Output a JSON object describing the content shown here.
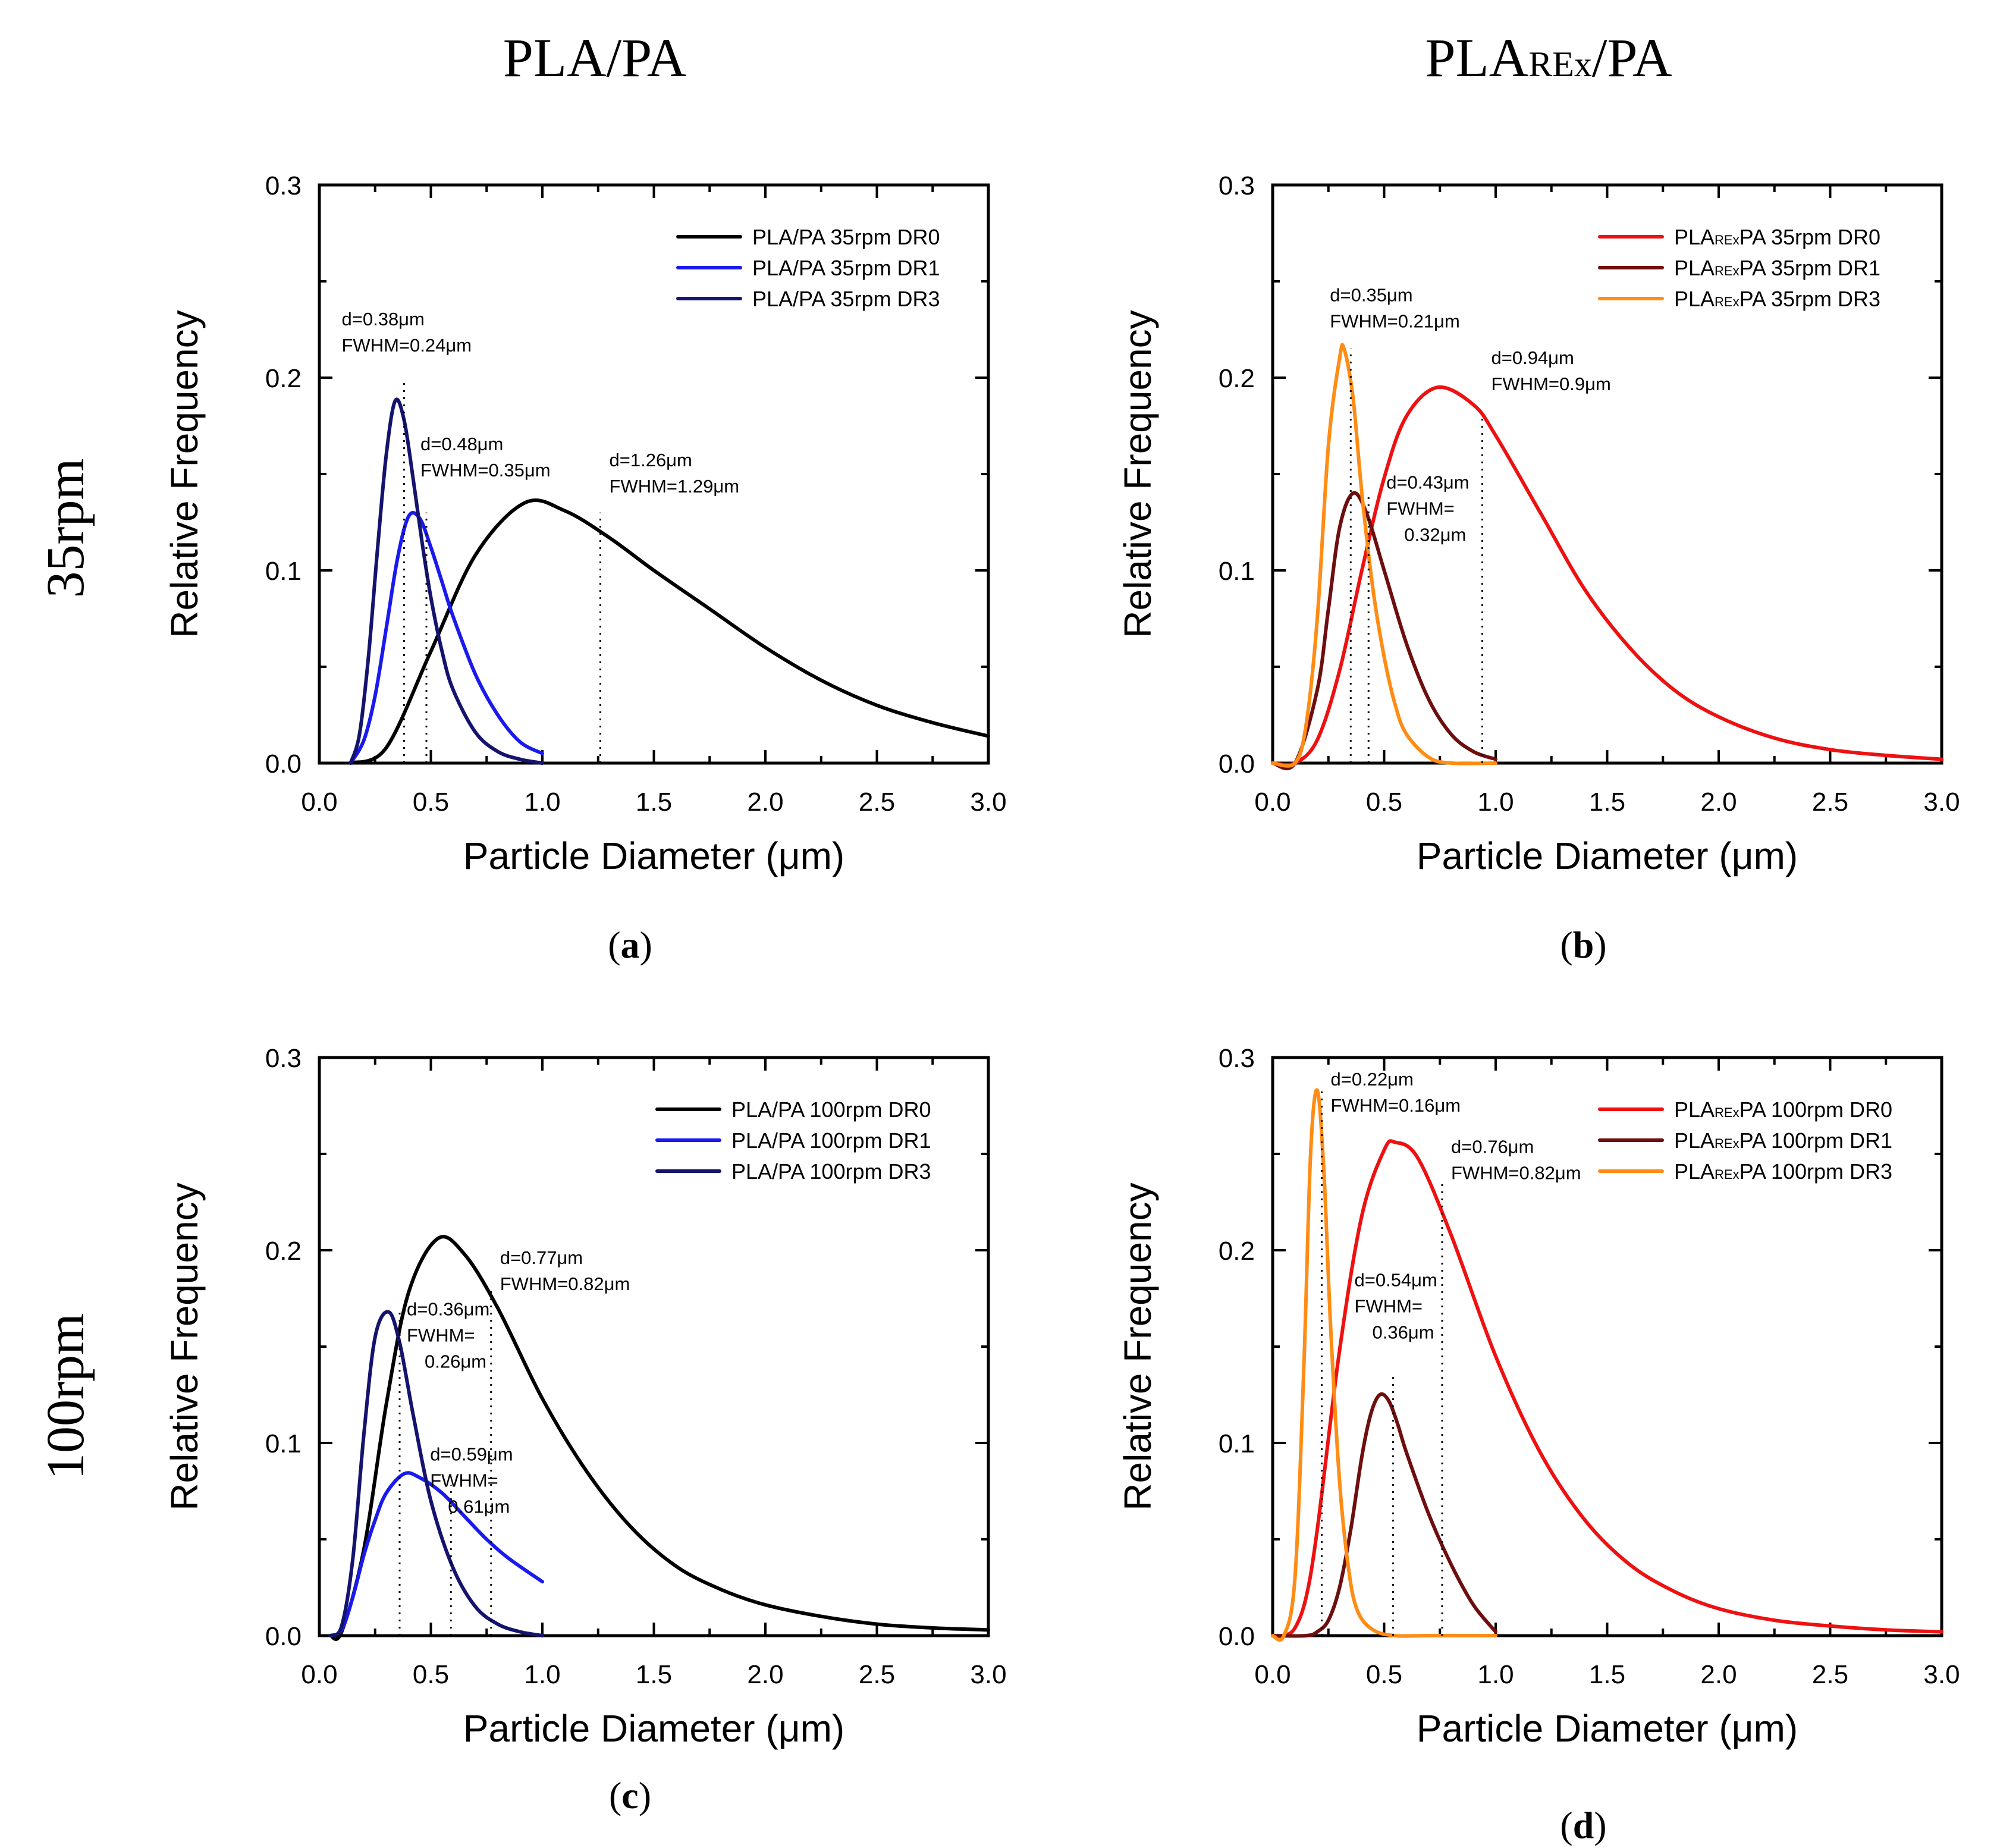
{
  "column_titles": [
    {
      "main": "PLA/PA",
      "sub": "",
      "rest": ""
    },
    {
      "main": "PLA",
      "sub": "REx",
      "rest": "/PA"
    }
  ],
  "row_labels": [
    "35rpm",
    "100rpm"
  ],
  "chart_data": [
    {
      "type": "line",
      "panel": "(a)",
      "panel_letter": "a",
      "xlabel": "Particle Diameter (μm)",
      "ylabel": "Relative Frequency",
      "xlim": [
        0.0,
        3.0
      ],
      "ylim": [
        0.0,
        0.3
      ],
      "xticks": [
        "0.0",
        "0.5",
        "1.0",
        "1.5",
        "2.0",
        "2.5",
        "3.0"
      ],
      "yticks": [
        "0.0",
        "0.1",
        "0.2",
        "0.3"
      ],
      "legend_position": "top-right",
      "series": [
        {
          "name": "PLA/PA 35rpm DR0",
          "label_main": "PLA/PA 35rpm DR0",
          "label_sub": "",
          "label_rest": "",
          "color": "#000000",
          "x": [
            0.14,
            0.3,
            0.5,
            0.7,
            0.92,
            1.1,
            1.3,
            1.5,
            1.75,
            2.0,
            2.25,
            2.5,
            2.75,
            3.0
          ],
          "y": [
            0.0,
            0.008,
            0.058,
            0.108,
            0.135,
            0.131,
            0.117,
            0.1,
            0.08,
            0.06,
            0.043,
            0.03,
            0.021,
            0.014
          ]
        },
        {
          "name": "PLA/PA 35rpm DR1",
          "label_main": "PLA/PA 35rpm DR1",
          "label_sub": "",
          "label_rest": "",
          "color": "#1a1aee",
          "x": [
            0.14,
            0.2,
            0.25,
            0.3,
            0.35,
            0.4,
            0.45,
            0.5,
            0.55,
            0.6,
            0.7,
            0.8,
            0.9,
            1.0
          ],
          "y": [
            0.0,
            0.012,
            0.035,
            0.07,
            0.106,
            0.128,
            0.127,
            0.112,
            0.094,
            0.076,
            0.046,
            0.025,
            0.011,
            0.005
          ]
        },
        {
          "name": "PLA/PA 35rpm DR3",
          "label_main": "PLA/PA 35rpm DR3",
          "label_sub": "",
          "label_rest": "",
          "color": "#14146e",
          "x": [
            0.14,
            0.18,
            0.22,
            0.26,
            0.3,
            0.34,
            0.38,
            0.42,
            0.46,
            0.5,
            0.55,
            0.6,
            0.7,
            0.8,
            0.9,
            1.0
          ],
          "y": [
            0.0,
            0.015,
            0.055,
            0.11,
            0.16,
            0.188,
            0.178,
            0.148,
            0.115,
            0.086,
            0.058,
            0.038,
            0.016,
            0.006,
            0.002,
            0.0
          ]
        }
      ],
      "annotations": [
        {
          "lines": [
            "d=0.38μm",
            "FWHM=0.24μm"
          ],
          "x": 0.38,
          "line_top": 0.2
        },
        {
          "lines": [
            "d=0.48μm",
            "FWHM=0.35μm"
          ],
          "x": 0.48,
          "line_top": 0.13
        },
        {
          "lines": [
            "d=1.26μm",
            "FWHM=1.29μm"
          ],
          "x": 1.26,
          "line_top": 0.13
        }
      ]
    },
    {
      "type": "line",
      "panel": "(b)",
      "panel_letter": "b",
      "xlabel": "Particle Diameter (μm)",
      "ylabel": "Relative Frequency",
      "xlim": [
        0.0,
        3.0
      ],
      "ylim": [
        0.0,
        0.3
      ],
      "xticks": [
        "0.0",
        "0.5",
        "1.0",
        "1.5",
        "2.0",
        "2.5",
        "3.0"
      ],
      "yticks": [
        "0.0",
        "0.1",
        "0.2",
        "0.3"
      ],
      "legend_position": "top-right",
      "series": [
        {
          "name": "PLAREx PA 35rpm DR0",
          "label_main": "PLA",
          "label_sub": "REx",
          "label_rest": "PA 35rpm DR0",
          "color": "#ee1111",
          "x": [
            0.0,
            0.1,
            0.2,
            0.3,
            0.4,
            0.5,
            0.6,
            0.74,
            0.9,
            1.0,
            1.2,
            1.4,
            1.6,
            1.8,
            2.0,
            2.25,
            2.5,
            2.75,
            3.0
          ],
          "y": [
            0.0,
            0.0,
            0.012,
            0.048,
            0.1,
            0.148,
            0.18,
            0.195,
            0.186,
            0.17,
            0.13,
            0.09,
            0.06,
            0.038,
            0.024,
            0.013,
            0.007,
            0.004,
            0.002
          ]
        },
        {
          "name": "PLAREx PA 35rpm DR1",
          "label_main": "PLA",
          "label_sub": "REx",
          "label_rest": "PA 35rpm DR1",
          "color": "#6e0e0e",
          "x": [
            0.0,
            0.1,
            0.2,
            0.25,
            0.3,
            0.36,
            0.42,
            0.5,
            0.6,
            0.7,
            0.8,
            0.9,
            1.0
          ],
          "y": [
            0.0,
            0.0,
            0.038,
            0.08,
            0.122,
            0.14,
            0.13,
            0.1,
            0.062,
            0.033,
            0.015,
            0.006,
            0.002
          ]
        },
        {
          "name": "PLAREx PA 35rpm DR3",
          "label_main": "PLA",
          "label_sub": "REx",
          "label_rest": "PA 35rpm DR3",
          "color": "#ff8c14",
          "x": [
            0.0,
            0.1,
            0.15,
            0.2,
            0.25,
            0.3,
            0.32,
            0.36,
            0.4,
            0.45,
            0.5,
            0.55,
            0.6,
            0.7,
            0.8,
            1.0
          ],
          "y": [
            0.0,
            0.0,
            0.02,
            0.075,
            0.165,
            0.21,
            0.215,
            0.19,
            0.14,
            0.09,
            0.055,
            0.03,
            0.015,
            0.003,
            0.0,
            0.0
          ]
        }
      ],
      "annotations": [
        {
          "lines": [
            "d=0.35μm",
            "FWHM=0.21μm"
          ],
          "x": 0.35,
          "line_top": 0.215
        },
        {
          "lines": [
            "d=0.94μm",
            "FWHM=0.9μm"
          ],
          "x": 0.94,
          "line_top": 0.18
        },
        {
          "lines": [
            "d=0.43μm",
            "FWHM=",
            "0.32μm"
          ],
          "x": 0.43,
          "line_top": 0.14
        }
      ]
    },
    {
      "type": "line",
      "panel": "(c)",
      "panel_letter": "c",
      "xlabel": "Particle Diameter (μm)",
      "ylabel": "Relative Frequency",
      "xlim": [
        0.0,
        3.0
      ],
      "ylim": [
        0.0,
        0.3
      ],
      "xticks": [
        "0.0",
        "0.5",
        "1.0",
        "1.5",
        "2.0",
        "2.5",
        "3.0"
      ],
      "yticks": [
        "0.0",
        "0.1",
        "0.2",
        "0.3"
      ],
      "legend_position": "top-right",
      "series": [
        {
          "name": "PLA/PA 100rpm DR0",
          "label_main": "PLA/PA 100rpm DR0",
          "label_sub": "",
          "label_rest": "",
          "color": "#000000",
          "x": [
            0.05,
            0.1,
            0.2,
            0.3,
            0.4,
            0.53,
            0.65,
            0.8,
            1.0,
            1.2,
            1.4,
            1.6,
            1.8,
            2.0,
            2.25,
            2.5,
            2.75,
            3.0
          ],
          "y": [
            0.0,
            0.002,
            0.045,
            0.12,
            0.178,
            0.206,
            0.198,
            0.17,
            0.123,
            0.085,
            0.056,
            0.036,
            0.024,
            0.016,
            0.01,
            0.006,
            0.004,
            0.003
          ]
        },
        {
          "name": "PLA/PA 100rpm DR1",
          "label_main": "PLA/PA 100rpm DR1",
          "label_sub": "",
          "label_rest": "",
          "color": "#1a1aee",
          "x": [
            0.05,
            0.1,
            0.15,
            0.2,
            0.25,
            0.3,
            0.38,
            0.45,
            0.55,
            0.65,
            0.75,
            0.85,
            1.0
          ],
          "y": [
            0.0,
            0.003,
            0.02,
            0.042,
            0.06,
            0.074,
            0.084,
            0.082,
            0.074,
            0.062,
            0.05,
            0.04,
            0.028
          ]
        },
        {
          "name": "PLA/PA 100rpm DR3",
          "label_main": "PLA/PA 100rpm DR3",
          "label_sub": "",
          "label_rest": "",
          "color": "#14146e",
          "x": [
            0.05,
            0.1,
            0.15,
            0.2,
            0.25,
            0.31,
            0.36,
            0.42,
            0.5,
            0.6,
            0.7,
            0.8,
            0.9,
            1.0
          ],
          "y": [
            0.0,
            0.005,
            0.04,
            0.105,
            0.155,
            0.168,
            0.152,
            0.115,
            0.07,
            0.035,
            0.015,
            0.006,
            0.002,
            0.0
          ]
        }
      ],
      "annotations": [
        {
          "lines": [
            "d=0.77μm",
            "FWHM=0.82μm"
          ],
          "x": 0.77,
          "line_top": 0.18
        },
        {
          "lines": [
            "d=0.36μm",
            "FWHM=",
            "0.26μm"
          ],
          "x": 0.36,
          "line_top": 0.168
        },
        {
          "lines": [
            "d=0.59μm",
            "FWHM=",
            "0.61μm"
          ],
          "x": 0.59,
          "line_top": 0.078
        }
      ]
    },
    {
      "type": "line",
      "panel": "(d)",
      "panel_letter": "d",
      "xlabel": "Particle Diameter (μm)",
      "ylabel": "Relative Frequency",
      "xlim": [
        0.0,
        3.0
      ],
      "ylim": [
        0.0,
        0.3
      ],
      "xticks": [
        "0.0",
        "0.5",
        "1.0",
        "1.5",
        "2.0",
        "2.5",
        "3.0"
      ],
      "yticks": [
        "0.0",
        "0.1",
        "0.2",
        "0.3"
      ],
      "legend_position": "top-right",
      "series": [
        {
          "name": "PLAREx PA 100rpm DR0",
          "label_main": "PLA",
          "label_sub": "REx",
          "label_rest": "PA 100rpm DR0",
          "color": "#ee1111",
          "x": [
            0.0,
            0.05,
            0.1,
            0.15,
            0.2,
            0.3,
            0.4,
            0.5,
            0.55,
            0.65,
            0.8,
            1.0,
            1.2,
            1.4,
            1.6,
            1.8,
            2.0,
            2.25,
            2.5,
            2.75,
            3.0
          ],
          "y": [
            0.0,
            0.0,
            0.004,
            0.02,
            0.055,
            0.148,
            0.218,
            0.252,
            0.256,
            0.248,
            0.208,
            0.145,
            0.095,
            0.06,
            0.037,
            0.023,
            0.014,
            0.008,
            0.005,
            0.003,
            0.002
          ]
        },
        {
          "name": "PLAREx PA 100rpm DR1",
          "label_main": "PLA",
          "label_sub": "REx",
          "label_rest": "PA 100rpm DR1",
          "color": "#6e0e0e",
          "x": [
            0.0,
            0.15,
            0.2,
            0.25,
            0.3,
            0.35,
            0.4,
            0.44,
            0.48,
            0.52,
            0.56,
            0.6,
            0.7,
            0.8,
            0.9,
            1.0
          ],
          "y": [
            0.0,
            0.0,
            0.002,
            0.008,
            0.025,
            0.055,
            0.093,
            0.115,
            0.125,
            0.122,
            0.11,
            0.095,
            0.063,
            0.037,
            0.016,
            0.002
          ]
        },
        {
          "name": "PLAREx PA 100rpm DR3",
          "label_main": "PLA",
          "label_sub": "REx",
          "label_rest": "PA 100rpm DR3",
          "color": "#ff8c14",
          "x": [
            0.0,
            0.05,
            0.1,
            0.14,
            0.17,
            0.2,
            0.23,
            0.26,
            0.3,
            0.34,
            0.38,
            0.45,
            0.55,
            0.7,
            1.0
          ],
          "y": [
            0.0,
            0.0,
            0.03,
            0.14,
            0.25,
            0.283,
            0.24,
            0.16,
            0.08,
            0.035,
            0.013,
            0.003,
            0.0,
            0.0,
            0.0
          ]
        }
      ],
      "annotations": [
        {
          "lines": [
            "d=0.22μm",
            "FWHM=0.16μm"
          ],
          "x": 0.22,
          "line_top": 0.283
        },
        {
          "lines": [
            "d=0.76μm",
            "FWHM=0.82μm"
          ],
          "x": 0.76,
          "line_top": 0.235
        },
        {
          "lines": [
            "d=0.54μm",
            "FWHM=",
            "0.36μm"
          ],
          "x": 0.54,
          "line_top": 0.135
        }
      ]
    }
  ]
}
